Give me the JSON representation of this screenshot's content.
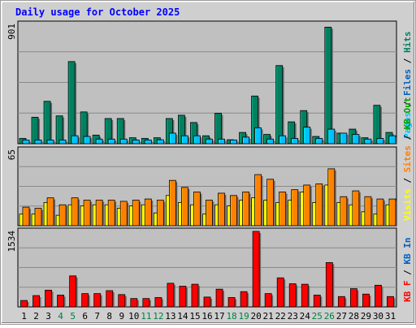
{
  "chart_data": {
    "type": "bar",
    "title": "Daily usage for October 2025",
    "categories": [
      "1",
      "2",
      "3",
      "4",
      "5",
      "6",
      "7",
      "8",
      "9",
      "10",
      "11",
      "12",
      "13",
      "14",
      "15",
      "16",
      "17",
      "18",
      "19",
      "20",
      "21",
      "22",
      "23",
      "24",
      "25",
      "26",
      "27",
      "28",
      "29",
      "30",
      "31"
    ],
    "weekend_days": [
      "4",
      "5",
      "11",
      "12",
      "18",
      "19",
      "25",
      "26"
    ],
    "panels": [
      {
        "max_label": "901",
        "ylim": [
          0,
          901
        ],
        "legend": [
          {
            "text": "Pages",
            "color": "#00c0ff"
          },
          {
            "text": "Files",
            "color": "#0060c0"
          },
          {
            "text": "Hits",
            "color": "#008060"
          }
        ],
        "series": [
          {
            "name": "Hits",
            "color": "#008060",
            "values": [
              40,
              200,
              320,
              210,
              620,
              240,
              65,
              190,
              190,
              45,
              40,
              45,
              190,
              215,
              160,
              60,
              230,
              30,
              85,
              360,
              70,
              590,
              165,
              250,
              55,
              880,
              80,
              110,
              45,
              290,
              85
            ]
          },
          {
            "name": "Files",
            "color": "#0060c0",
            "values": [
              0,
              0,
              0,
              0,
              0,
              0,
              0,
              0,
              0,
              0,
              0,
              0,
              0,
              0,
              0,
              0,
              0,
              0,
              0,
              0,
              0,
              0,
              0,
              0,
              0,
              0,
              0,
              0,
              0,
              0,
              0
            ]
          },
          {
            "name": "Pages",
            "color": "#00c0ff",
            "values": [
              28,
              28,
              28,
              28,
              60,
              55,
              35,
              35,
              35,
              28,
              28,
              30,
              80,
              60,
              60,
              35,
              35,
              28,
              50,
              120,
              35,
              60,
              40,
              125,
              40,
              110,
              80,
              70,
              35,
              40,
              60
            ]
          }
        ]
      },
      {
        "max_label": "65",
        "ylim": [
          0,
          65
        ],
        "legend": [
          {
            "text": "Visits",
            "color": "#ffff00"
          },
          {
            "text": "Sites",
            "color": "#ff8000"
          },
          {
            "text": "KB Out",
            "color": "#00a000"
          }
        ],
        "series": [
          {
            "name": "Visits",
            "color": "#ffff00",
            "values": [
              10,
              10,
              20,
              9,
              18,
              17,
              18,
              18,
              15,
              17,
              18,
              11,
              26,
              20,
              18,
              10,
              18,
              17,
              22,
              24,
              22,
              20,
              22,
              29,
              20,
              35,
              20,
              18,
              12,
              10,
              18
            ]
          },
          {
            "name": "Sites",
            "color": "#ff8000",
            "values": [
              16,
              15,
              24,
              18,
              24,
              22,
              22,
              22,
              21,
              22,
              23,
              22,
              39,
              33,
              29,
              22,
              28,
              26,
              29,
              44,
              40,
              29,
              31,
              35,
              36,
              49,
              25,
              30,
              25,
              23,
              23
            ]
          }
        ]
      },
      {
        "max_label": "1534",
        "ylim": [
          0,
          1534
        ],
        "legend": [
          {
            "text": "KB F",
            "color": "#ff0000"
          },
          {
            "text": "KB In",
            "color": "#0060c0"
          }
        ],
        "series": [
          {
            "name": "KB F",
            "color": "#ff0000",
            "values": [
              130,
              230,
              340,
              240,
              630,
              270,
              270,
              330,
              250,
              170,
              170,
              190,
              480,
              420,
              460,
              200,
              360,
              190,
              310,
              1534,
              270,
              590,
              470,
              460,
              240,
              900,
              210,
              370,
              260,
              440,
              210
            ]
          }
        ]
      }
    ]
  }
}
